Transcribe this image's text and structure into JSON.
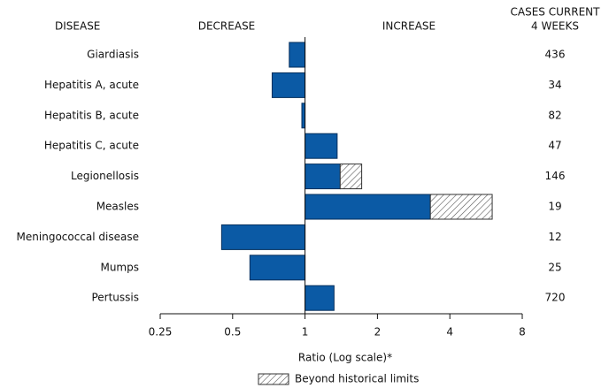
{
  "chart_data": {
    "type": "bar",
    "orientation": "horizontal",
    "log_scale": true,
    "headers": {
      "disease": "DISEASE",
      "decrease": "DECREASE",
      "increase": "INCREASE",
      "cases": [
        "CASES CURRENT",
        "4 WEEKS"
      ]
    },
    "categories": [
      "Giardiasis",
      "Hepatitis A, acute",
      "Hepatitis B, acute",
      "Hepatitis C, acute",
      "Legionellosis",
      "Measles",
      "Meningococcal disease",
      "Mumps",
      "Pertussis"
    ],
    "values": [
      0.86,
      0.73,
      0.97,
      1.36,
      1.72,
      6.0,
      0.45,
      0.59,
      1.32
    ],
    "historical_limits": [
      null,
      null,
      null,
      null,
      1.4,
      3.32,
      null,
      null,
      null
    ],
    "cases": [
      436,
      34,
      82,
      47,
      146,
      19,
      12,
      25,
      720
    ],
    "color": "#0b5aa5",
    "xlim": [
      0.25,
      8
    ],
    "xticks": [
      0.25,
      0.5,
      1,
      2,
      4,
      8
    ],
    "xlabel": "Ratio (Log scale)*",
    "legend": "Beyond historical limits"
  }
}
